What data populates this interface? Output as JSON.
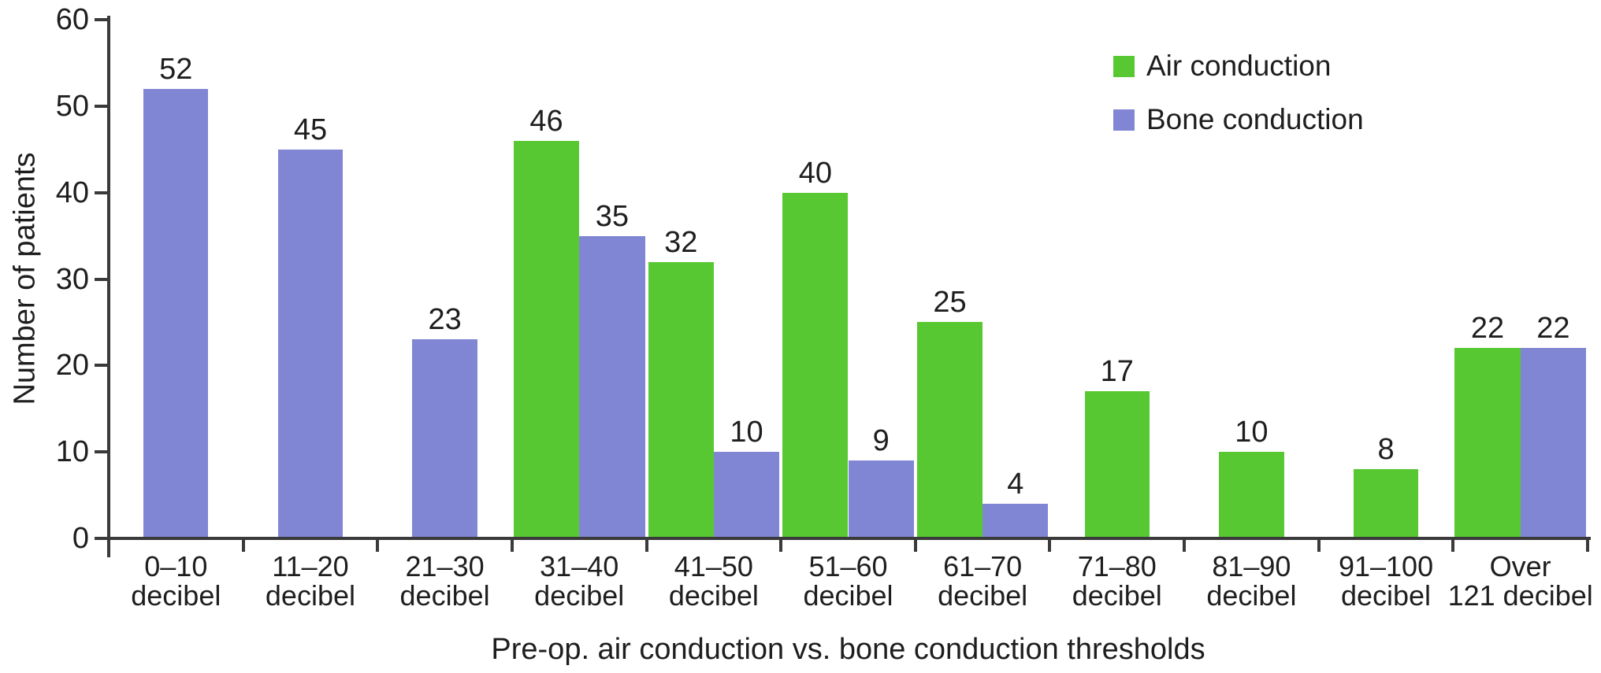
{
  "chart_data": {
    "type": "bar",
    "title": "",
    "xlabel": "Pre-op. air conduction vs. bone conduction thresholds",
    "ylabel": "Number of patients",
    "ylim": [
      0,
      60
    ],
    "yticks": [
      0,
      10,
      20,
      30,
      40,
      50,
      60
    ],
    "grid": false,
    "legend_position": "top-right",
    "bar_value_labels": true,
    "categories": [
      [
        "0–10",
        "decibel"
      ],
      [
        "11–20",
        "decibel"
      ],
      [
        "21–30",
        "decibel"
      ],
      [
        "31–40",
        "decibel"
      ],
      [
        "41–50",
        "decibel"
      ],
      [
        "51–60",
        "decibel"
      ],
      [
        "61–70",
        "decibel"
      ],
      [
        "71–80",
        "decibel"
      ],
      [
        "81–90",
        "decibel"
      ],
      [
        "91–100",
        "decibel"
      ],
      [
        "Over",
        "121 decibel"
      ]
    ],
    "series": [
      {
        "name": "Air conduction",
        "color": "#58c832",
        "values": [
          null,
          null,
          null,
          46,
          32,
          40,
          25,
          17,
          10,
          8,
          22
        ]
      },
      {
        "name": "Bone conduction",
        "color": "#8186d4",
        "values": [
          52,
          45,
          23,
          35,
          10,
          9,
          4,
          null,
          null,
          null,
          22
        ]
      }
    ],
    "colors": {
      "axis": "#3a3a3a",
      "text": "#1e1e1e",
      "background": "#ffffff"
    }
  }
}
